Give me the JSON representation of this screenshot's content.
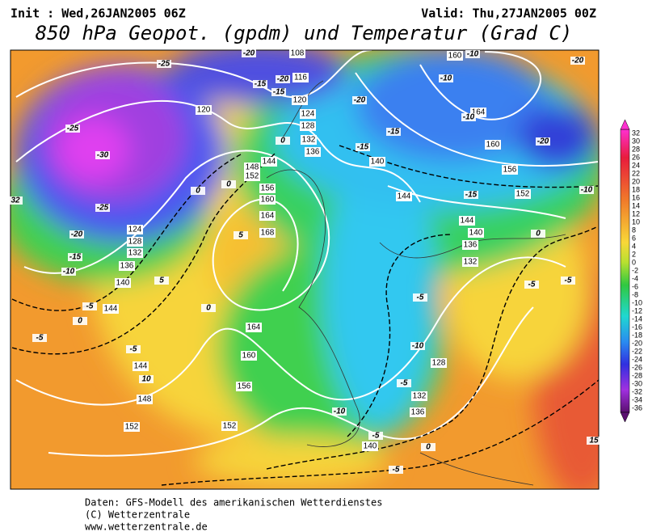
{
  "header": {
    "init": "Init : Wed,26JAN2005 06Z",
    "valid": "Valid: Thu,27JAN2005 00Z",
    "title": "850 hPa Geopot. (gpdm) und Temperatur (Grad C)"
  },
  "contour_labels": {
    "geopotential": [
      108,
      116,
      120,
      124,
      128,
      132,
      136,
      120,
      140,
      144,
      148,
      152,
      156,
      160,
      164,
      168,
      124,
      128,
      132,
      136,
      140,
      144,
      164,
      160,
      156,
      152,
      152,
      148,
      144,
      140,
      136,
      132,
      128,
      132,
      136,
      140,
      144,
      144,
      152,
      156,
      160,
      164,
      160
    ],
    "temperature": [
      -20,
      -25,
      -15,
      -20,
      -15,
      -20,
      -25,
      -30,
      -25,
      -20,
      -15,
      -10,
      -5,
      0,
      -5,
      -5,
      10,
      5,
      5,
      0,
      0,
      0,
      0,
      -15,
      -15,
      -15,
      -10,
      0,
      -5,
      -5,
      -5,
      -10,
      -5,
      -10,
      -5,
      0,
      -5,
      -20,
      -20,
      -10,
      -10,
      -10,
      32,
      15
    ]
  },
  "colorbar": {
    "labels": [
      32,
      30,
      28,
      26,
      24,
      22,
      20,
      18,
      16,
      14,
      12,
      10,
      8,
      6,
      4,
      2,
      0,
      -2,
      -4,
      -6,
      -8,
      -10,
      -12,
      -14,
      -16,
      -18,
      -20,
      -22,
      -24,
      -26,
      -28,
      -30,
      -32,
      -34,
      -36
    ]
  },
  "footer": {
    "lines": [
      "Daten: GFS-Modell des amerikanischen Wetterdienstes",
      "(C) Wetterzentrale",
      "www.wetterzentrale.de"
    ]
  }
}
